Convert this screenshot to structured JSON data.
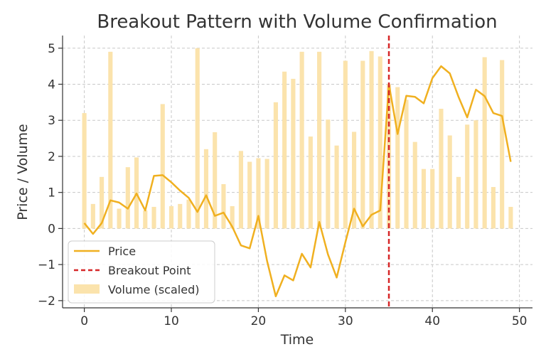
{
  "chart_data": {
    "type": "line",
    "title": "Breakout Pattern with Volume Confirmation",
    "xlabel": "Time",
    "ylabel": "Price / Volume",
    "xlim": [
      -2.5,
      51.5
    ],
    "ylim": [
      -2.2,
      5.35
    ],
    "xticks": [
      0,
      10,
      20,
      30,
      40,
      50
    ],
    "yticks": [
      -2,
      -1,
      0,
      1,
      2,
      3,
      4,
      5
    ],
    "grid": true,
    "legend_position": "lower-left",
    "breakout": {
      "name": "Breakout Point",
      "x": 35,
      "color": "#d62728"
    },
    "series": [
      {
        "name": "Price",
        "kind": "line",
        "color": "#f0b020",
        "x": [
          0,
          1,
          2,
          3,
          4,
          5,
          6,
          7,
          8,
          9,
          10,
          11,
          12,
          13,
          14,
          15,
          16,
          17,
          18,
          19,
          20,
          21,
          22,
          23,
          24,
          25,
          26,
          27,
          28,
          29,
          30,
          31,
          32,
          33,
          34,
          35,
          36,
          37,
          38,
          39,
          40,
          41,
          42,
          43,
          44,
          45,
          46,
          47,
          48,
          49
        ],
        "values": [
          0.15,
          -0.15,
          0.15,
          0.78,
          0.72,
          0.55,
          0.97,
          0.5,
          1.46,
          1.48,
          1.28,
          1.05,
          0.85,
          0.46,
          0.92,
          0.35,
          0.44,
          0.05,
          -0.47,
          -0.55,
          0.35,
          -0.9,
          -1.88,
          -1.3,
          -1.44,
          -0.7,
          -1.08,
          0.18,
          -0.72,
          -1.36,
          -0.38,
          0.55,
          0.06,
          0.38,
          0.5,
          4.0,
          2.62,
          3.68,
          3.65,
          3.47,
          4.17,
          4.5,
          4.3,
          3.65,
          3.08,
          3.85,
          3.67,
          3.2,
          3.12,
          1.85
        ]
      },
      {
        "name": "Volume (scaled)",
        "kind": "bar",
        "color": "#fbe3ac",
        "x": [
          0,
          1,
          2,
          3,
          4,
          5,
          6,
          7,
          8,
          9,
          10,
          11,
          12,
          13,
          14,
          15,
          16,
          17,
          18,
          19,
          20,
          21,
          22,
          23,
          24,
          25,
          26,
          27,
          28,
          29,
          30,
          31,
          32,
          33,
          34,
          35,
          36,
          37,
          38,
          39,
          40,
          41,
          42,
          43,
          44,
          45,
          46,
          47,
          48,
          49
        ],
        "values": [
          3.2,
          0.68,
          1.43,
          4.9,
          0.55,
          1.7,
          1.97,
          0.5,
          0.6,
          3.45,
          0.62,
          0.68,
          0.8,
          5.0,
          2.2,
          2.67,
          1.23,
          0.62,
          2.15,
          1.85,
          1.95,
          1.93,
          3.5,
          4.35,
          4.15,
          4.9,
          2.55,
          4.9,
          3.02,
          2.3,
          4.65,
          2.68,
          4.65,
          4.92,
          4.77,
          4.0,
          3.92,
          3.57,
          2.4,
          1.65,
          1.65,
          3.32,
          2.58,
          1.43,
          2.88,
          3.0,
          4.75,
          1.15,
          4.67,
          0.6
        ]
      }
    ]
  }
}
